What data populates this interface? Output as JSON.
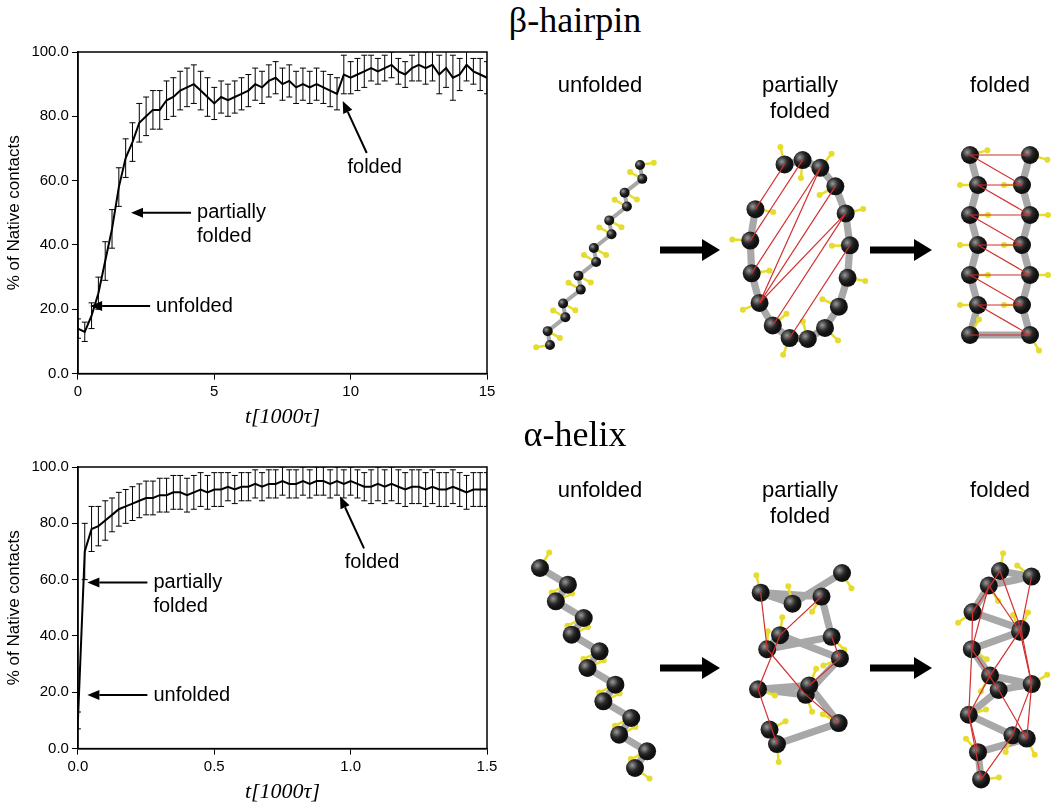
{
  "chart_data": [
    {
      "type": "line",
      "title": "β-hairpin",
      "x_label": "t[1000τ]",
      "y_label": "% of Native contacts",
      "color": "#000000",
      "grid": false,
      "x": [
        0,
        0.25,
        0.5,
        0.75,
        1,
        1.25,
        1.5,
        1.75,
        2,
        2.25,
        2.5,
        2.75,
        3,
        3.25,
        3.5,
        3.75,
        4,
        4.25,
        4.5,
        4.75,
        5,
        5.25,
        5.5,
        5.75,
        6,
        6.25,
        6.5,
        6.75,
        7,
        7.25,
        7.5,
        7.75,
        8,
        8.25,
        8.5,
        8.75,
        9,
        9.25,
        9.5,
        9.75,
        10,
        10.25,
        10.5,
        10.75,
        11,
        11.25,
        11.5,
        11.75,
        12,
        12.25,
        12.5,
        12.75,
        13,
        13.25,
        13.5,
        13.75,
        14,
        14.25,
        14.5,
        14.75,
        15
      ],
      "values": [
        14,
        13,
        18,
        25,
        35,
        45,
        58,
        67,
        72,
        78,
        80,
        82,
        82,
        85,
        86,
        88,
        89,
        90,
        88,
        86,
        84,
        86,
        85,
        86,
        87,
        88,
        90,
        89,
        91,
        92,
        90,
        91,
        89,
        90,
        89,
        90,
        89,
        88,
        87,
        93,
        92,
        93,
        94,
        95,
        94,
        95,
        96,
        94,
        93,
        95,
        96,
        95,
        96,
        93,
        95,
        92,
        93,
        96,
        94,
        93,
        92
      ],
      "errors": [
        3,
        3,
        4,
        5,
        6,
        6,
        6,
        6,
        6,
        6,
        6,
        6,
        6,
        6,
        6,
        6,
        6,
        6,
        6,
        6,
        5,
        5,
        5,
        5,
        5,
        5,
        5,
        5,
        5,
        5,
        5,
        5,
        5,
        5,
        5,
        5,
        5,
        5,
        5,
        6,
        5,
        5,
        5,
        4,
        4,
        4,
        4,
        4,
        4,
        4,
        5,
        5,
        5,
        6,
        6,
        7,
        5,
        5,
        4,
        5,
        5
      ],
      "xlim": [
        0,
        15
      ],
      "xticks": [
        0,
        5,
        10,
        15
      ],
      "ylim": [
        0,
        100
      ],
      "yticks": [
        {
          "value": 0,
          "label": "0.0"
        },
        {
          "value": 20,
          "label": "20.0"
        },
        {
          "value": 40,
          "label": "40.0"
        },
        {
          "value": 60,
          "label": "60.0"
        },
        {
          "value": 80,
          "label": "80.0"
        },
        {
          "value": 100,
          "label": "100.0"
        }
      ],
      "annotations": [
        {
          "text": "unfolded",
          "x": 0.3,
          "y": 21
        },
        {
          "text": "partially folded",
          "x": 1.8,
          "y": 50
        },
        {
          "text": "folded",
          "x": 9.6,
          "y": 86
        }
      ]
    },
    {
      "type": "line",
      "title": "α-helix",
      "x_label": "t[1000τ]",
      "y_label": "% of Native contacts",
      "color": "#000000",
      "grid": false,
      "x": [
        0,
        0.025,
        0.05,
        0.075,
        0.1,
        0.125,
        0.15,
        0.175,
        0.2,
        0.225,
        0.25,
        0.275,
        0.3,
        0.325,
        0.35,
        0.375,
        0.4,
        0.425,
        0.45,
        0.475,
        0.5,
        0.525,
        0.55,
        0.575,
        0.6,
        0.625,
        0.65,
        0.675,
        0.7,
        0.725,
        0.75,
        0.775,
        0.8,
        0.825,
        0.85,
        0.875,
        0.9,
        0.925,
        0.95,
        0.975,
        1,
        1.025,
        1.05,
        1.075,
        1.1,
        1.125,
        1.15,
        1.175,
        1.2,
        1.225,
        1.25,
        1.275,
        1.3,
        1.325,
        1.35,
        1.375,
        1.4,
        1.425,
        1.45,
        1.475,
        1.5
      ],
      "values": [
        10,
        70,
        78,
        79,
        81,
        83,
        85,
        86,
        87,
        88,
        89,
        89,
        90,
        90,
        91,
        91,
        90,
        91,
        92,
        91,
        92,
        92,
        93,
        92,
        93,
        93,
        94,
        93,
        94,
        94,
        95,
        94,
        94,
        95,
        94,
        95,
        95,
        94,
        95,
        94,
        95,
        94,
        93,
        93,
        94,
        93,
        94,
        93,
        92,
        93,
        93,
        92,
        93,
        92,
        92,
        93,
        92,
        91,
        92,
        92,
        92
      ],
      "errors": [
        3,
        10,
        8,
        7,
        7,
        6,
        6,
        6,
        6,
        6,
        6,
        6,
        6,
        6,
        6,
        6,
        6,
        6,
        6,
        6,
        6,
        6,
        5,
        5,
        5,
        5,
        5,
        5,
        5,
        5,
        5,
        5,
        5,
        5,
        5,
        5,
        5,
        5,
        5,
        5,
        5,
        5,
        5,
        6,
        6,
        6,
        6,
        6,
        6,
        6,
        6,
        6,
        6,
        6,
        6,
        6,
        6,
        6,
        6,
        6,
        6
      ],
      "xlim": [
        0,
        1.5
      ],
      "xticks": [
        {
          "value": 0,
          "label": "0.0"
        },
        {
          "value": 0.5,
          "label": "0.5"
        },
        {
          "value": 1,
          "label": "1.0"
        },
        {
          "value": 1.5,
          "label": "1.5"
        }
      ],
      "ylim": [
        0,
        100
      ],
      "yticks": [
        {
          "value": 0,
          "label": "0.0"
        },
        {
          "value": 20,
          "label": "20.0"
        },
        {
          "value": 40,
          "label": "40.0"
        },
        {
          "value": 60,
          "label": "60.0"
        },
        {
          "value": 80,
          "label": "80.0"
        },
        {
          "value": 100,
          "label": "100.0"
        }
      ],
      "annotations": [
        {
          "text": "unfolded",
          "x": 0.02,
          "y": 19
        },
        {
          "text": "partially folded",
          "x": 0.02,
          "y": 59
        },
        {
          "text": "folded",
          "x": 0.95,
          "y": 91
        }
      ]
    }
  ],
  "structure_labels": [
    [
      "unfolded",
      "partially folded",
      "folded"
    ],
    [
      "unfolded",
      "partially folded",
      "folded"
    ]
  ]
}
